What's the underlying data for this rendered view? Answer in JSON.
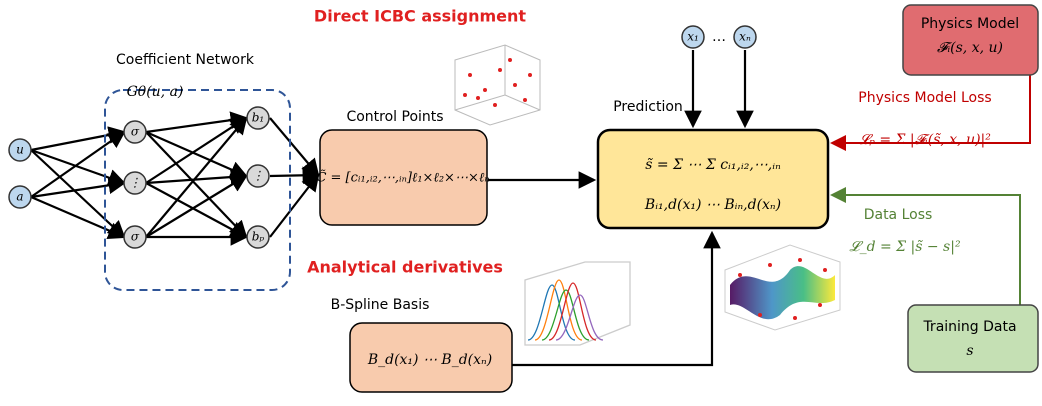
{
  "top_labels": {
    "icbc": "Direct ICBC assignment",
    "derivatives": "Analytical derivatives"
  },
  "inputs": {
    "u": "u",
    "a": "a"
  },
  "coefficient_network": {
    "title": "Coefficient Network",
    "function": "Gθ(u, a)",
    "hidden": [
      "σ",
      "⋮",
      "σ"
    ],
    "outputs": [
      "b₁",
      "⋮",
      "bₚ"
    ]
  },
  "control_points": {
    "label": "Control Points",
    "formula": "C̃ = [cᵢ₁,ᵢ₂,⋯,ᵢₙ]ℓ₁×ℓ₂×⋯×ℓₙ"
  },
  "coordinates": {
    "x1": "x₁",
    "dots": "…",
    "xn": "xₙ"
  },
  "prediction": {
    "label": "Prediction",
    "line1": "s̃ = Σ ⋯ Σ cᵢ₁,ᵢ₂,⋯,ᵢₙ",
    "line2": "Bᵢ₁,d(x₁) ⋯ Bᵢₙ,d(xₙ)"
  },
  "physics_model": {
    "title": "Physics Model",
    "formula": "𝓕ᵢ(s, x, u)"
  },
  "physics_loss": {
    "label": "Physics Model Loss",
    "formula": "𝓛ₚ = Σ |𝓕ᵢ(s̃, x, u)|²"
  },
  "data_loss": {
    "label": "Data Loss",
    "formula": "𝓛_d = Σ |s̃ − s|²"
  },
  "training_data": {
    "title": "Training Data",
    "symbol": "s"
  },
  "bspline": {
    "label": "B-Spline Basis",
    "formula": "B_d(x₁) ⋯ B_d(xₙ)"
  }
}
